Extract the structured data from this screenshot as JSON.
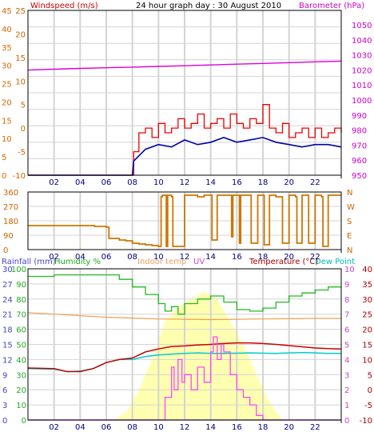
{
  "colors": {
    "wind_avg": "#0000aa",
    "wind_gust": "#ee0000",
    "barometer": "#dd00dd",
    "direction": "#cc7700",
    "temperature": "#cc0000",
    "dew_point": "#00cccc",
    "indoor_temp": "#f0a050",
    "humidity": "#22bb22",
    "uv": "#ff44ff",
    "rainfall": "#4444cc",
    "solar_fill": "#ffffb0",
    "grid": "#d4d4d4",
    "bg": "#ffffff"
  },
  "chart_data": [
    {
      "id": "wind-baro",
      "type": "line",
      "title": "24 hour graph day : 30 August 2010",
      "left_axis_label": "Windspeed (m/s)",
      "right_axis_label": "Barometer (hPa)",
      "left_ticks_outer": [
        "45",
        "40",
        "35",
        "30",
        "25",
        "20",
        "15",
        "10",
        "5",
        "0"
      ],
      "left_ticks_inner": [
        "25",
        "20",
        "15",
        "10",
        "5",
        "0",
        "-5",
        "-10"
      ],
      "right_ticks": [
        "1050",
        "1040",
        "1030",
        "1020",
        "1010",
        "1000",
        "990",
        "980",
        "970",
        "960",
        "950"
      ],
      "x_ticks": [
        "02",
        "04",
        "06",
        "08",
        "10",
        "12",
        "14",
        "16",
        "18",
        "20",
        "22"
      ],
      "x_range": [
        0,
        24
      ],
      "wind_range": [
        -10,
        25
      ],
      "baro_range": [
        950,
        1050
      ],
      "series": [
        {
          "key": "barometer",
          "x": [
            0,
            2,
            4,
            6,
            8,
            10,
            12,
            14,
            16,
            18,
            20,
            22,
            24
          ],
          "values": [
            1013.8,
            1014.3,
            1014.8,
            1015.2,
            1015.6,
            1016.0,
            1016.4,
            1016.9,
            1017.4,
            1017.8,
            1018.3,
            1018.8,
            1019.2
          ]
        },
        {
          "key": "wind_avg",
          "x": [
            0,
            8.0,
            8.1,
            9,
            10,
            11,
            12,
            13,
            14,
            15,
            16,
            17,
            18,
            19,
            20,
            21,
            22,
            23,
            24
          ],
          "values": [
            -10,
            -10,
            -7,
            -4.5,
            -3.5,
            -4,
            -2.5,
            -3.5,
            -3,
            -2,
            -3,
            -2.5,
            -2,
            -3,
            -3.5,
            -4,
            -3.5,
            -3.5,
            -4
          ]
        },
        {
          "key": "wind_gust",
          "x": [
            0,
            8.0,
            8.1,
            8.5,
            9,
            9.5,
            10,
            10.5,
            11,
            11.5,
            12,
            12.5,
            13,
            13.5,
            14,
            14.5,
            15,
            15.5,
            16,
            16.5,
            17,
            17.5,
            18,
            18.5,
            19,
            19.5,
            20,
            20.5,
            21,
            21.5,
            22,
            22.5,
            23,
            23.5,
            24
          ],
          "values": [
            -10,
            -10,
            -5,
            -1,
            0,
            -2,
            1,
            -1,
            0,
            2,
            0,
            1,
            3,
            0,
            1,
            2,
            0,
            3,
            1,
            0,
            2,
            1,
            5,
            0,
            -1,
            1,
            -2,
            -1,
            0,
            -2,
            0,
            -2,
            -1,
            0,
            -1
          ]
        }
      ]
    },
    {
      "id": "direction",
      "type": "line",
      "left_ticks": [
        "360",
        "270",
        "180",
        "90",
        "0"
      ],
      "right_ticks": [
        "N",
        "W",
        "S",
        "E",
        "N"
      ],
      "x_ticks": [
        "02",
        "04",
        "06",
        "08",
        "10",
        "12",
        "14",
        "16",
        "18",
        "20",
        "22"
      ],
      "x_range": [
        0,
        24
      ],
      "y_range": [
        0,
        360
      ],
      "series": [
        {
          "key": "direction",
          "x": [
            0,
            2,
            4,
            5.0,
            5.1,
            6.0,
            6.2,
            7.0,
            7.5,
            8.0,
            8.5,
            9.0,
            9.5,
            10.0,
            10.2,
            10.3,
            10.6,
            10.7,
            11,
            11.1,
            12,
            12.1,
            13,
            13.5,
            14,
            14.1,
            14.5,
            14.6,
            15,
            15.6,
            15.7,
            16,
            16.2,
            16.3,
            17,
            17.1,
            17.6,
            18,
            18.1,
            18.5,
            19,
            19.4,
            19.5,
            20,
            20.5,
            20.6,
            21,
            21.4,
            21.5,
            22,
            22.5,
            22.6,
            23,
            23.5,
            24
          ],
          "values": [
            150,
            150,
            150,
            150,
            145,
            140,
            70,
            60,
            55,
            40,
            35,
            30,
            25,
            20,
            330,
            340,
            20,
            340,
            330,
            20,
            340,
            340,
            330,
            340,
            340,
            60,
            340,
            340,
            340,
            80,
            340,
            340,
            40,
            340,
            340,
            40,
            340,
            340,
            30,
            340,
            330,
            330,
            40,
            340,
            330,
            40,
            340,
            340,
            40,
            340,
            330,
            20,
            340,
            340,
            340
          ]
        }
      ]
    },
    {
      "id": "temp-humidity",
      "type": "line",
      "labels": {
        "rainfall": "Rainfall (mm)",
        "humidity": "Humidity %",
        "indoor": "Indoor temp",
        "uv": "UV",
        "temperature": "Temperature (°C)",
        "dew": "Dew Point"
      },
      "rain_ticks": [
        "30",
        "27",
        "24",
        "21",
        "18",
        "15",
        "12",
        "9",
        "6",
        "3",
        "0"
      ],
      "humidity_ticks": [
        "100",
        "90",
        "80",
        "70",
        "60",
        "50",
        "40",
        "30",
        "20",
        "10",
        "0"
      ],
      "uv_ticks": [
        "10",
        "9",
        "8",
        "7",
        "6",
        "5",
        "4",
        "3",
        "2",
        "1",
        "0"
      ],
      "temp_ticks": [
        "40",
        "35",
        "30",
        "25",
        "20",
        "15",
        "10",
        "5",
        "0",
        "-5",
        "-10"
      ],
      "x_ticks": [
        "02",
        "04",
        "06",
        "08",
        "10",
        "12",
        "14",
        "16",
        "18",
        "20",
        "22"
      ],
      "x_range": [
        0,
        24
      ],
      "temp_range": [
        -10,
        40
      ],
      "humidity_range": [
        0,
        100
      ],
      "uv_range": [
        0,
        10
      ],
      "series": [
        {
          "key": "humidity",
          "x": [
            0,
            2,
            4,
            6,
            7,
            8,
            9,
            10,
            10.5,
            11,
            11.5,
            12,
            13,
            14,
            15,
            16,
            17,
            18,
            19,
            20,
            21,
            22,
            23,
            24
          ],
          "values": [
            95,
            96,
            96,
            96,
            93,
            88,
            83,
            77,
            72,
            75,
            70,
            77,
            80,
            82,
            78,
            73,
            72,
            74,
            78,
            82,
            84,
            86,
            88,
            88
          ]
        },
        {
          "key": "indoor_temp",
          "x": [
            0,
            2,
            4,
            6,
            8,
            10,
            12,
            14,
            16,
            18,
            20,
            22,
            24
          ],
          "values": [
            25.5,
            25.0,
            24.5,
            24.0,
            23.7,
            23.4,
            23.3,
            23.2,
            23.3,
            23.4,
            23.5,
            23.6,
            23.6
          ]
        },
        {
          "key": "temperature",
          "x": [
            0,
            2,
            3,
            4,
            5,
            6,
            7,
            8,
            9,
            10,
            11,
            12,
            13,
            14,
            15,
            16,
            17,
            18,
            19,
            20,
            21,
            22,
            23,
            24
          ],
          "values": [
            7.2,
            7.0,
            6.0,
            6.0,
            7.0,
            9.0,
            10.0,
            10.5,
            12.5,
            13.5,
            14.3,
            14.5,
            14.8,
            15.0,
            15.3,
            15.5,
            15.5,
            15.3,
            15.0,
            14.6,
            14.2,
            13.8,
            13.6,
            13.5
          ]
        },
        {
          "key": "dew_point",
          "x": [
            0,
            2,
            3,
            4,
            5,
            6,
            7,
            8,
            9,
            10,
            11,
            12,
            13,
            14,
            15,
            16,
            17,
            18,
            19,
            20,
            21,
            22,
            23,
            24
          ],
          "values": [
            7.0,
            6.8,
            6.0,
            6.2,
            7.0,
            9.0,
            10.0,
            10.0,
            11.0,
            11.5,
            11.8,
            12.0,
            12.2,
            12.0,
            12.0,
            12.1,
            12.2,
            12.1,
            12.0,
            12.2,
            12.3,
            12.2,
            12.0,
            12.0
          ]
        },
        {
          "key": "uv",
          "x": [
            0,
            10,
            10.5,
            11,
            11.2,
            11.5,
            11.8,
            12,
            12.5,
            13,
            13.5,
            14,
            14.2,
            14.5,
            14.8,
            15,
            15.5,
            16,
            16.5,
            17,
            17.5,
            18,
            24
          ],
          "values": [
            0,
            0,
            1.5,
            3.5,
            2.0,
            4.0,
            2.5,
            3.0,
            2.0,
            3.5,
            2.5,
            4.5,
            5.5,
            4.0,
            5.0,
            4.5,
            3.0,
            2.0,
            1.5,
            1.0,
            0.3,
            0,
            0
          ]
        },
        {
          "key": "solar",
          "x": [
            0,
            6.5,
            7.5,
            8.5,
            9.5,
            10.5,
            11.5,
            12.5,
            13.5,
            14.5,
            15.5,
            16.5,
            17.5,
            18.5,
            19.5,
            24
          ],
          "values": [
            0,
            0,
            0.5,
            2.0,
            4.0,
            6.5,
            7.5,
            8.0,
            8.5,
            8.0,
            6.5,
            5.0,
            3.0,
            1.2,
            0,
            0
          ]
        },
        {
          "key": "rainfall",
          "x": [
            0,
            24
          ],
          "values": [
            0,
            0
          ]
        }
      ]
    }
  ]
}
